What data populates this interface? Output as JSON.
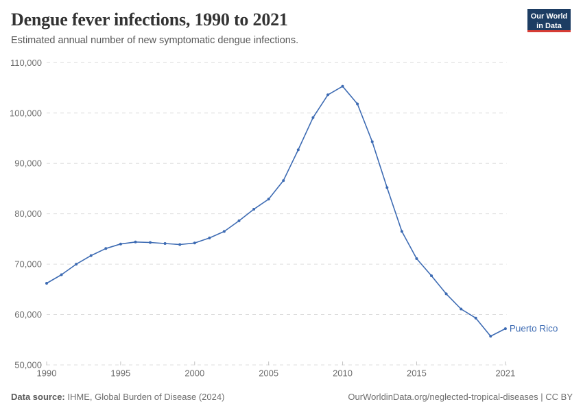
{
  "header": {
    "title": "Dengue fever infections, 1990 to 2021",
    "subtitle": "Estimated annual number of new symptomatic dengue infections.",
    "logo": {
      "line1": "Our World",
      "line2": "in Data"
    }
  },
  "chart_data": {
    "type": "line",
    "title": "Dengue fever infections, 1990 to 2021",
    "xlabel": "",
    "ylabel": "",
    "xlim": [
      1990,
      2021
    ],
    "ylim": [
      50000,
      110000
    ],
    "grid": "horizontal-dashed",
    "legend_position": "end-of-line-label",
    "x": [
      1990,
      1991,
      1992,
      1993,
      1994,
      1995,
      1996,
      1997,
      1998,
      1999,
      2000,
      2001,
      2002,
      2003,
      2004,
      2005,
      2006,
      2007,
      2008,
      2009,
      2010,
      2011,
      2012,
      2013,
      2014,
      2015,
      2016,
      2017,
      2018,
      2019,
      2020,
      2021
    ],
    "series": [
      {
        "name": "Puerto Rico",
        "color": "#3d6bb3",
        "values": [
          66200,
          67900,
          70000,
          71700,
          73100,
          74000,
          74400,
          74300,
          74100,
          73900,
          74200,
          75200,
          76500,
          78600,
          80900,
          82900,
          86600,
          92700,
          99100,
          103600,
          105300,
          101800,
          94300,
          85200,
          76500,
          71100,
          67700,
          64100,
          61100,
          59300,
          55700,
          57200
        ]
      }
    ],
    "y_ticks": [
      {
        "value": 50000,
        "label": "50,000"
      },
      {
        "value": 60000,
        "label": "60,000"
      },
      {
        "value": 70000,
        "label": "70,000"
      },
      {
        "value": 80000,
        "label": "80,000"
      },
      {
        "value": 90000,
        "label": "90,000"
      },
      {
        "value": 100000,
        "label": "100,000"
      },
      {
        "value": 110000,
        "label": "110,000"
      }
    ],
    "x_ticks": [
      {
        "value": 1990,
        "label": "1990"
      },
      {
        "value": 1995,
        "label": "1995"
      },
      {
        "value": 2000,
        "label": "2000"
      },
      {
        "value": 2005,
        "label": "2005"
      },
      {
        "value": 2010,
        "label": "2010"
      },
      {
        "value": 2015,
        "label": "2015"
      },
      {
        "value": 2021,
        "label": "2021"
      }
    ]
  },
  "footer": {
    "datasource_label": "Data source:",
    "datasource_value": " IHME, Global Burden of Disease (2024)",
    "url": "OurWorldinData.org/neglected-tropical-diseases",
    "separator": " | ",
    "license": "CC BY"
  },
  "colors": {
    "line": "#3d6bb3",
    "grid": "#dddddd",
    "axis_text": "#6e6e6e",
    "logo_bg": "#1d3d63",
    "logo_stripe": "#d73c34",
    "title_text": "#333333"
  }
}
